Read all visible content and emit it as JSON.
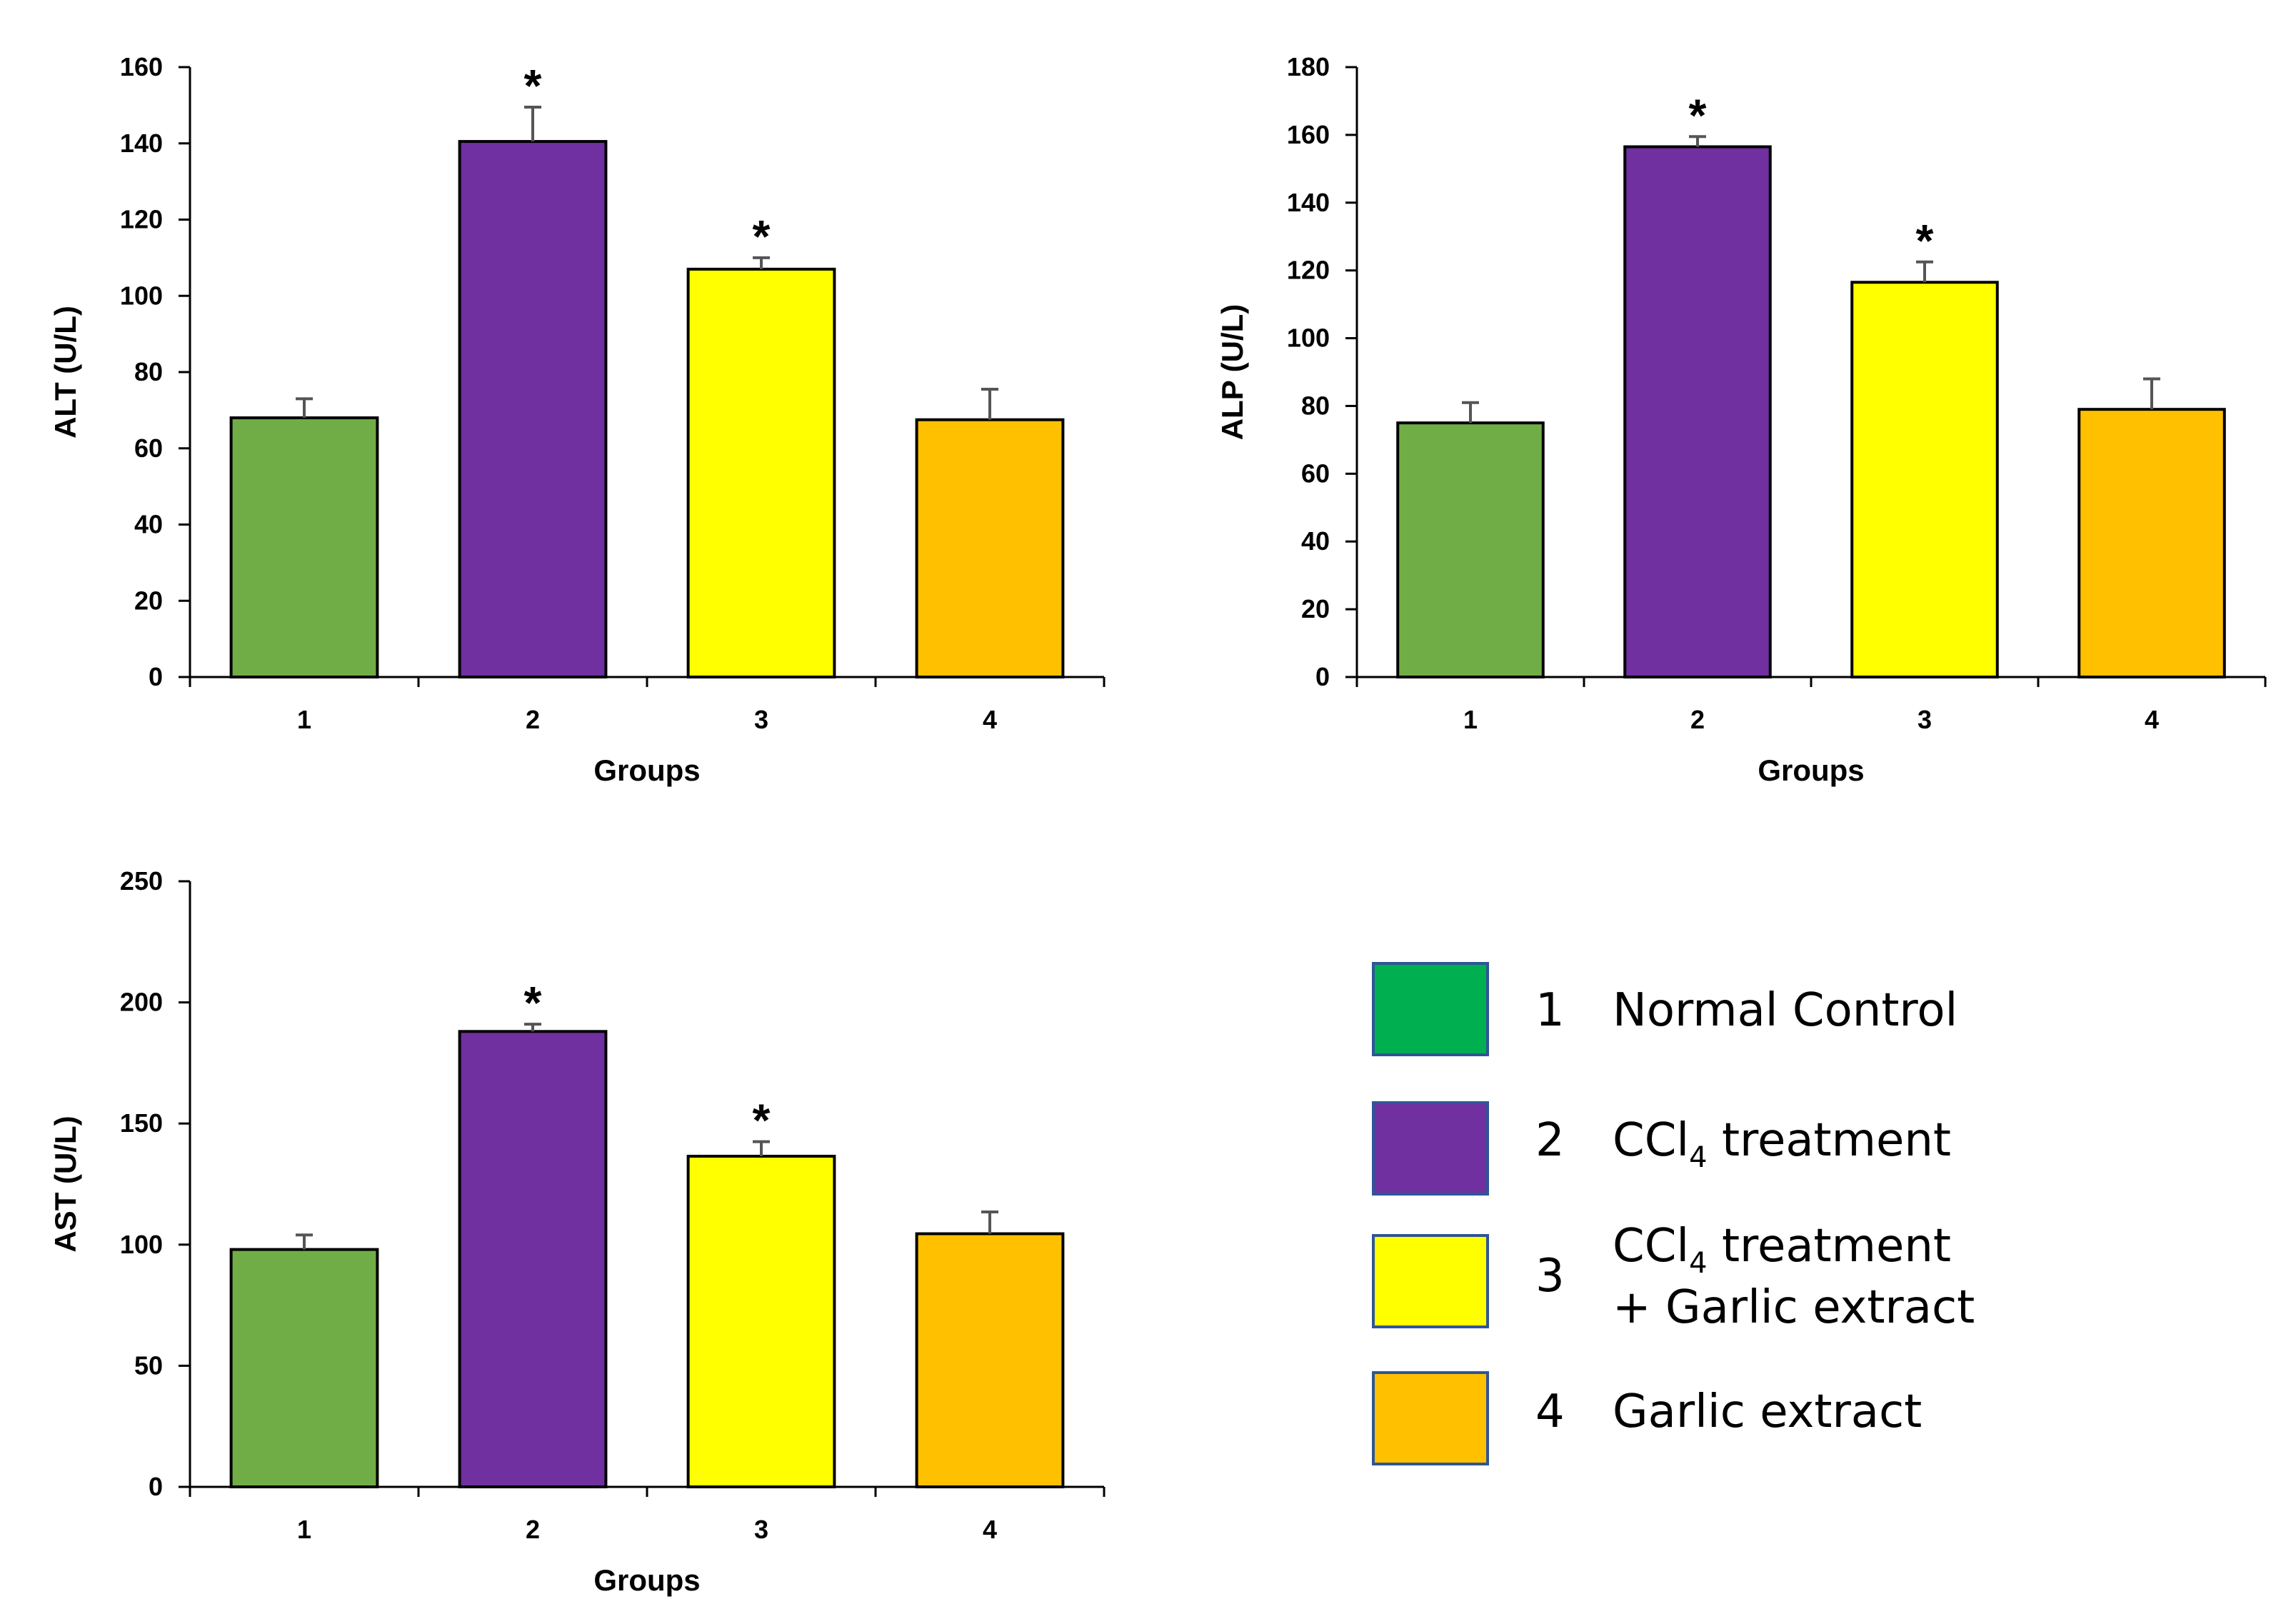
{
  "chart_data": [
    {
      "type": "bar",
      "id": "alt",
      "title": "",
      "xlabel": "Groups",
      "ylabel": "ALT (U/L)",
      "categories": [
        "1",
        "2",
        "3",
        "4"
      ],
      "values": [
        68,
        140.5,
        107,
        67.5
      ],
      "errors": [
        5,
        9,
        3,
        8
      ],
      "significant": [
        false,
        true,
        true,
        false
      ],
      "colors": [
        "#70AD47",
        "#7030A0",
        "#FFFF00",
        "#FFC000"
      ],
      "ylim": [
        0,
        160
      ],
      "yticks": [
        0,
        20,
        40,
        60,
        80,
        100,
        120,
        140,
        160
      ],
      "marker": "*"
    },
    {
      "type": "bar",
      "id": "alp",
      "title": "",
      "xlabel": "Groups",
      "ylabel": "ALP (U/L)",
      "categories": [
        "1",
        "2",
        "3",
        "4"
      ],
      "values": [
        75,
        156.5,
        116.5,
        79
      ],
      "errors": [
        6,
        3,
        6,
        9
      ],
      "significant": [
        false,
        true,
        true,
        false
      ],
      "colors": [
        "#70AD47",
        "#7030A0",
        "#FFFF00",
        "#FFC000"
      ],
      "ylim": [
        0,
        180
      ],
      "yticks": [
        0,
        20,
        40,
        60,
        80,
        100,
        120,
        140,
        160,
        180
      ],
      "marker": "*"
    },
    {
      "type": "bar",
      "id": "ast",
      "title": "",
      "xlabel": "Groups",
      "ylabel": "AST (U/L)",
      "categories": [
        "1",
        "2",
        "3",
        "4"
      ],
      "values": [
        98,
        188,
        136.5,
        104.5
      ],
      "errors": [
        6,
        3,
        6,
        9
      ],
      "significant": [
        false,
        true,
        true,
        false
      ],
      "colors": [
        "#70AD47",
        "#7030A0",
        "#FFFF00",
        "#FFC000"
      ],
      "ylim": [
        0,
        250
      ],
      "yticks": [
        0,
        50,
        100,
        150,
        200,
        250
      ],
      "marker": "*"
    }
  ],
  "legend": {
    "items": [
      {
        "number": "1",
        "label": "Normal Control",
        "color": "#00B050"
      },
      {
        "number": "2",
        "label_prefix": "CCl",
        "label_sub": "4",
        "label_suffix": " treatment",
        "color": "#7030A0"
      },
      {
        "number": "3",
        "label_prefix": "CCl",
        "label_sub": "4",
        "label_suffix": " treatment",
        "label_line2": "+ Garlic extract",
        "color": "#FFFF00"
      },
      {
        "number": "4",
        "label": "Garlic extract",
        "color": "#FFC000"
      }
    ],
    "border_color": "#2F5597"
  }
}
